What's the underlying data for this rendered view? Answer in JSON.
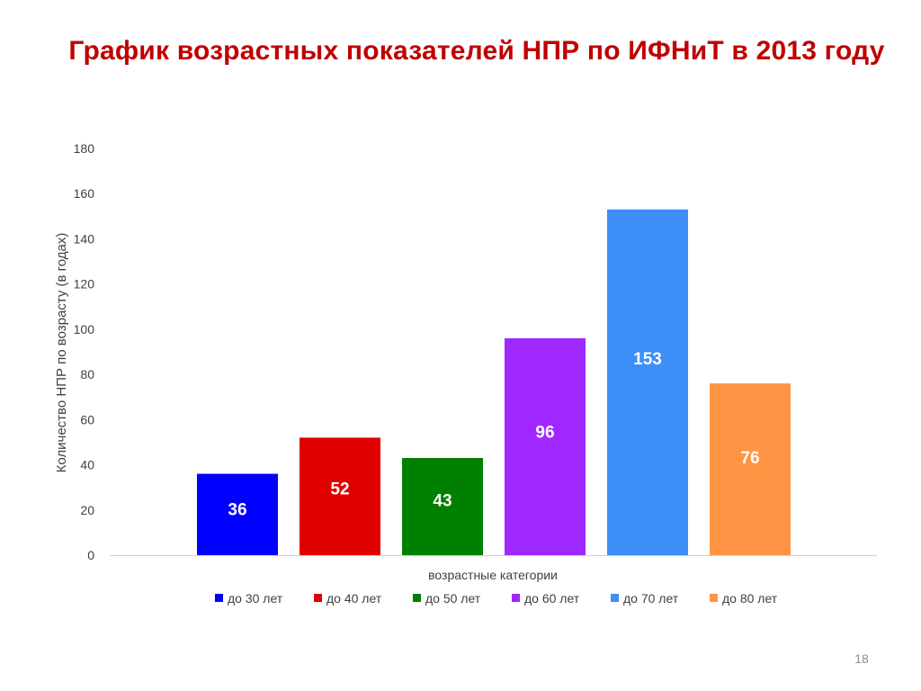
{
  "slide": {
    "title": "График возрастных показателей НПР по ИФНиТ в 2013 году",
    "page_number": "18"
  },
  "chart_data": {
    "type": "bar",
    "title": "",
    "xlabel": "возрастные категории",
    "ylabel": "Количество НПР по возрасту  (в годах)",
    "ylim": [
      0,
      180
    ],
    "yticks": [
      0,
      20,
      40,
      60,
      80,
      100,
      120,
      140,
      160,
      180
    ],
    "grid": false,
    "legend_position": "bottom",
    "series": [
      {
        "name": "до 30 лет",
        "value": 36,
        "color": "#0000ff"
      },
      {
        "name": "до 40 лет",
        "value": 52,
        "color": "#e00000"
      },
      {
        "name": "до 50 лет",
        "value": 43,
        "color": "#008000"
      },
      {
        "name": "до 60 лет",
        "value": 96,
        "color": "#9f27ff"
      },
      {
        "name": "до 70 лет",
        "value": 153,
        "color": "#3d8ff7"
      },
      {
        "name": "до 80 лет",
        "value": 76,
        "color": "#ff9444"
      }
    ]
  }
}
